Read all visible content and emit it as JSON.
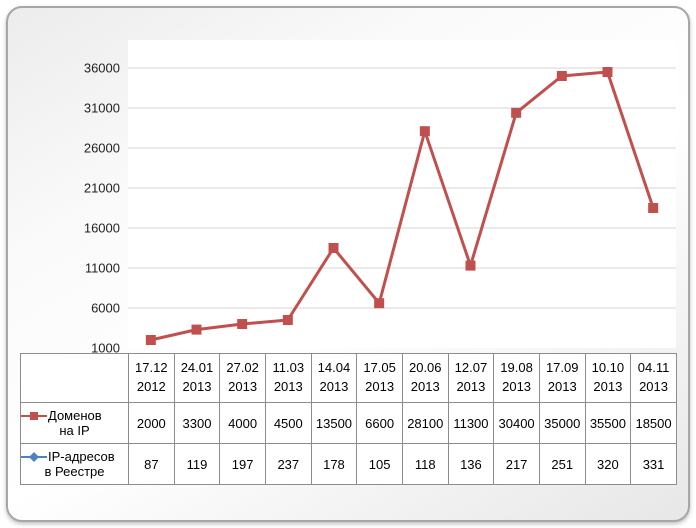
{
  "chart_data": {
    "type": "line",
    "categories": [
      "17.12 2012",
      "24.01 2013",
      "27.02 2013",
      "11.03 2013",
      "14.04 2013",
      "17.05 2013",
      "20.06 2013",
      "12.07 2013",
      "19.08 2013",
      "17.09 2013",
      "10.10 2013",
      "04.11 2013"
    ],
    "series": [
      {
        "name": "Доменов на IP",
        "name_lines": [
          "Доменов",
          "на IP"
        ],
        "color": "#C0504D",
        "marker": "square",
        "values": [
          2000,
          3300,
          4000,
          4500,
          13500,
          6600,
          28100,
          11300,
          30400,
          35000,
          35500,
          18500
        ]
      },
      {
        "name": "IP-адресов в Реестре",
        "name_lines": [
          "IP-адресов",
          "в Реестре"
        ],
        "color": "#4F81BD",
        "marker": "diamond",
        "values": [
          87,
          119,
          197,
          237,
          178,
          105,
          118,
          136,
          217,
          251,
          320,
          331
        ]
      }
    ],
    "y_axis": {
      "min": 1000,
      "max": 36000,
      "step": 5000,
      "ticks": [
        1000,
        6000,
        11000,
        16000,
        21000,
        26000,
        31000,
        36000
      ]
    },
    "grid": true,
    "legend_position": "table-left",
    "title": "",
    "xlabel": "",
    "ylabel": ""
  }
}
